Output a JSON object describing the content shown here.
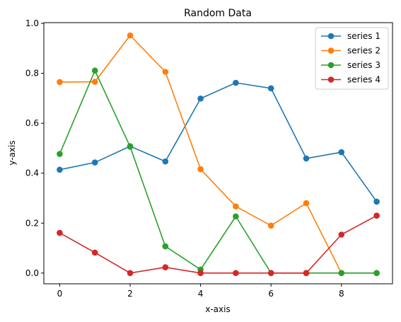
{
  "chart_data": {
    "type": "line",
    "title": "Random Data",
    "xlabel": "x-axis",
    "ylabel": "y-axis",
    "x": [
      0,
      1,
      2,
      3,
      4,
      5,
      6,
      7,
      8,
      9
    ],
    "xlim": [
      -0.45,
      9.45
    ],
    "ylim": [
      -0.043,
      1.003
    ],
    "x_ticks": [
      "0",
      "2",
      "4",
      "6",
      "8"
    ],
    "x_tick_values": [
      0,
      2,
      4,
      6,
      8
    ],
    "y_ticks": [
      "0.0",
      "0.2",
      "0.4",
      "0.6",
      "0.8",
      "1.0"
    ],
    "y_tick_values": [
      0.0,
      0.2,
      0.4,
      0.6,
      0.8,
      1.0
    ],
    "grid": false,
    "legend_position": "top-right",
    "marker": "circle",
    "series": [
      {
        "name": "series 1",
        "color": "#1f77b4",
        "values": [
          0.414,
          0.443,
          0.508,
          0.447,
          0.699,
          0.762,
          0.74,
          0.459,
          0.484,
          0.286
        ]
      },
      {
        "name": "series 2",
        "color": "#ff7f0e",
        "values": [
          0.765,
          0.766,
          0.952,
          0.806,
          0.416,
          0.267,
          0.19,
          0.28,
          0.0,
          0.0
        ]
      },
      {
        "name": "series 3",
        "color": "#2ca02c",
        "values": [
          0.477,
          0.811,
          0.506,
          0.107,
          0.014,
          0.227,
          0.0,
          0.0,
          0.0,
          0.0
        ]
      },
      {
        "name": "series 4",
        "color": "#d62728",
        "values": [
          0.161,
          0.082,
          0.0,
          0.023,
          0.0,
          0.0,
          0.0,
          0.0,
          0.154,
          0.23
        ]
      }
    ]
  }
}
